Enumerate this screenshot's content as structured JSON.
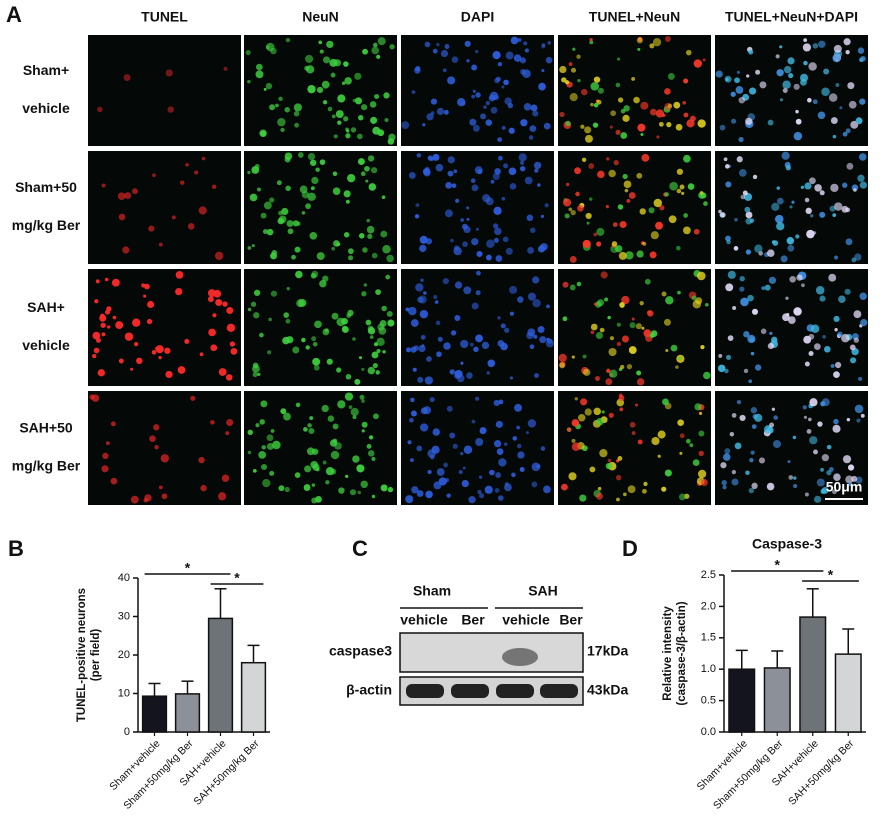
{
  "panel_labels": [
    "A",
    "B",
    "C",
    "D"
  ],
  "panel_a": {
    "columns": [
      "TUNEL",
      "NeuN",
      "DAPI",
      "TUNEL+NeuN",
      "TUNEL+NeuN+DAPI"
    ],
    "rows": [
      [
        "Sham+",
        "vehicle"
      ],
      [
        "Sham+50",
        "mg/kg Ber"
      ],
      [
        "SAH+",
        "vehicle"
      ],
      [
        "SAH+50",
        "mg/kg Ber"
      ]
    ],
    "scale_bar": "50μm"
  },
  "western_blot": {
    "groups": [
      "Sham",
      "SAH"
    ],
    "lanes": [
      "vehicle",
      "Ber",
      "vehicle",
      "Ber"
    ],
    "bands": [
      {
        "name": "caspase3",
        "size": "17kDa"
      },
      {
        "name": "β-actin",
        "size": "43kDa"
      }
    ]
  },
  "chart_data": [
    {
      "type": "bar",
      "ylabel": [
        "TUNEL-positive neurons",
        "(per field)"
      ],
      "categories": [
        "Sham+vehicle",
        "Sham+50mg/kg Ber",
        "SAH+vehicle",
        "SAH+50mg/kg Ber"
      ],
      "values": [
        9.3,
        9.9,
        29.5,
        18
      ],
      "errors": [
        3.3,
        3.3,
        7.7,
        4.5
      ],
      "colors": [
        "#14141f",
        "#8c9099",
        "#6e7378",
        "#d3d6d6"
      ],
      "ylim": [
        0,
        40
      ],
      "yticks": [
        0,
        10,
        20,
        30,
        40
      ],
      "significance": [
        {
          "from": "Sham+vehicle",
          "to": "SAH+vehicle",
          "label": "*"
        },
        {
          "from": "SAH+vehicle",
          "to": "SAH+50mg/kg Ber",
          "label": "*"
        }
      ]
    },
    {
      "type": "bar",
      "title": "Caspase-3",
      "ylabel": [
        "Relative intensity",
        "(caspase-3/β-actin)"
      ],
      "categories": [
        "Sham+vehicle",
        "Sham+50mg/kg Ber",
        "SAH+vehicle",
        "SAH+50mg/kg Ber"
      ],
      "values": [
        1.0,
        1.02,
        1.83,
        1.24
      ],
      "errors": [
        0.3,
        0.27,
        0.45,
        0.4
      ],
      "colors": [
        "#14141f",
        "#8c9099",
        "#6e7378",
        "#d3d6d6"
      ],
      "ylim": [
        0,
        2.5
      ],
      "yticks": [
        {
          "value": 0,
          "label": "0.0"
        },
        0.5,
        {
          "value": 1,
          "label": "1.0"
        },
        1.5,
        {
          "value": 2,
          "label": "2.0"
        },
        2.5
      ],
      "significance": [
        {
          "from": "Sham+vehicle",
          "to": "SAH+vehicle",
          "label": "*"
        },
        {
          "from": "SAH+vehicle",
          "to": "SAH+50mg/kg Ber",
          "label": "*"
        }
      ]
    }
  ]
}
